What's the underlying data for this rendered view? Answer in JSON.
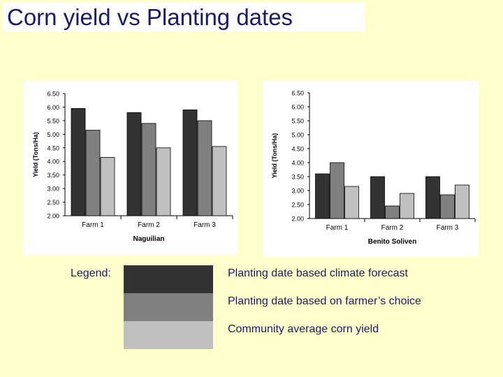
{
  "slide": {
    "title": "Corn yield vs Planting dates"
  },
  "legend": {
    "label": "Legend:",
    "items": [
      {
        "text": "Planting date based climate forecast",
        "color": "#333333"
      },
      {
        "text": "Planting date based on farmer’s choice",
        "color": "#808080"
      },
      {
        "text": "Community average corn yield",
        "color": "#c0c0c0"
      }
    ]
  },
  "chart_data": [
    {
      "type": "bar",
      "title": "",
      "xlabel": "Naguilian",
      "ylabel": "Yield (Tons/Ha)",
      "ylim": [
        2.0,
        6.5
      ],
      "yticks": [
        "2.00",
        "2.50",
        "3.00",
        "3.50",
        "4.00",
        "4.50",
        "5.00",
        "5.50",
        "6.00",
        "6.50"
      ],
      "grid": false,
      "categories": [
        "Farm 1",
        "Farm 2",
        "Farm 3"
      ],
      "series": [
        {
          "values": [
            5.95,
            5.8,
            5.9
          ],
          "color": "#333333"
        },
        {
          "values": [
            5.15,
            5.4,
            5.5
          ],
          "color": "#808080"
        },
        {
          "values": [
            4.15,
            4.5,
            4.55
          ],
          "color": "#c0c0c0"
        }
      ]
    },
    {
      "type": "bar",
      "title": "",
      "xlabel": "Benito Soliven",
      "ylabel": "Yield (Tons/Ha)",
      "ylim": [
        2.0,
        6.5
      ],
      "yticks": [
        "2.00",
        "2.50",
        "3.00",
        "3.50",
        "4.00",
        "4.50",
        "5.00",
        "5.50",
        "6.00",
        "6.50"
      ],
      "grid": false,
      "categories": [
        "Farm 1",
        "Farm 2",
        "Farm 3"
      ],
      "series": [
        {
          "values": [
            3.6,
            3.5,
            3.5
          ],
          "color": "#333333"
        },
        {
          "values": [
            4.0,
            2.45,
            2.85
          ],
          "color": "#808080"
        },
        {
          "values": [
            3.15,
            2.9,
            3.2
          ],
          "color": "#c0c0c0"
        }
      ]
    }
  ]
}
